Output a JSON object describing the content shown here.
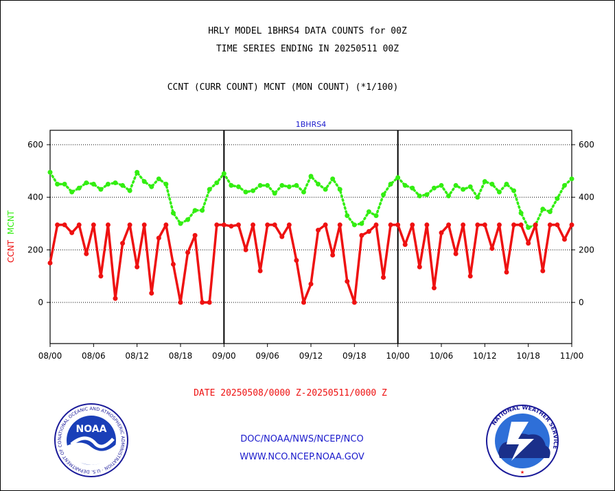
{
  "header": {
    "title_line1": "HRLY MODEL 1BHRS4 DATA COUNTS for 00Z",
    "title_line2": "TIME SERIES ENDING IN 20250511 00Z",
    "subtitle": "CCNT (CURR COUNT) MCNT (MON COUNT) (*1/100)"
  },
  "footer": {
    "date_range": "DATE 20250508/0000 Z-20250511/0000 Z",
    "org_path": "DOC/NOAA/NWS/NCEP/NCO",
    "website": "WWW.NCO.NCEP.NOAA.GOV",
    "noaa_logo_text": "NOAA",
    "noaa_ring_text": "NATIONAL OCEANIC AND ATMOSPHERIC ADMINISTRATION · U.S. DEPARTMENT OF COMMERCE ·",
    "nws_ring_text": "NATIONAL WEATHER SERVICE"
  },
  "colors": {
    "ccnt": "#ee1111",
    "mcnt": "#33ee11",
    "axis_title": "#1a1acc",
    "ylabel_ccnt": "#ee1111",
    "ylabel_mcnt": "#33ee11"
  },
  "chart_data": {
    "type": "line",
    "title": "1BHRS4",
    "ylabel_parts": [
      "CCNT",
      "MCNT"
    ],
    "ylim": [
      -160,
      650
    ],
    "yticks": [
      0,
      200,
      400,
      600
    ],
    "xlim": [
      0,
      72
    ],
    "xticks": [
      {
        "x": 0,
        "label": "08/00"
      },
      {
        "x": 6,
        "label": "08/06"
      },
      {
        "x": 12,
        "label": "08/12"
      },
      {
        "x": 18,
        "label": "08/18"
      },
      {
        "x": 24,
        "label": "09/00"
      },
      {
        "x": 30,
        "label": "09/06"
      },
      {
        "x": 36,
        "label": "09/12"
      },
      {
        "x": 42,
        "label": "09/18"
      },
      {
        "x": 48,
        "label": "10/00"
      },
      {
        "x": 54,
        "label": "10/06"
      },
      {
        "x": 60,
        "label": "10/12"
      },
      {
        "x": 66,
        "label": "10/18"
      },
      {
        "x": 72,
        "label": "11/00"
      }
    ],
    "day_dividers": [
      24,
      48
    ],
    "grid_y": true,
    "series": [
      {
        "name": "CCNT",
        "style": "solid",
        "points": [
          [
            0,
            150
          ],
          [
            1,
            295
          ],
          [
            2,
            295
          ],
          [
            3,
            265
          ],
          [
            4,
            295
          ],
          [
            5,
            185
          ],
          [
            6,
            295
          ],
          [
            7,
            100
          ],
          [
            8,
            295
          ],
          [
            9,
            15
          ],
          [
            10,
            225
          ],
          [
            11,
            295
          ],
          [
            12,
            135
          ],
          [
            13,
            295
          ],
          [
            14,
            35
          ],
          [
            15,
            245
          ],
          [
            16,
            295
          ],
          [
            17,
            145
          ],
          [
            18,
            0
          ],
          [
            19,
            190
          ],
          [
            20,
            255
          ],
          [
            21,
            0
          ],
          [
            22,
            0
          ],
          [
            23,
            295
          ],
          [
            24,
            295
          ],
          [
            25,
            290
          ],
          [
            26,
            295
          ],
          [
            27,
            200
          ],
          [
            28,
            295
          ],
          [
            29,
            120
          ],
          [
            30,
            295
          ],
          [
            31,
            295
          ],
          [
            32,
            250
          ],
          [
            33,
            295
          ],
          [
            34,
            160
          ],
          [
            35,
            0
          ],
          [
            36,
            70
          ],
          [
            37,
            275
          ],
          [
            38,
            295
          ],
          [
            39,
            180
          ],
          [
            40,
            295
          ],
          [
            41,
            80
          ],
          [
            42,
            0
          ],
          [
            43,
            255
          ],
          [
            44,
            270
          ],
          [
            45,
            295
          ],
          [
            46,
            95
          ],
          [
            47,
            295
          ],
          [
            48,
            295
          ],
          [
            49,
            220
          ],
          [
            50,
            295
          ],
          [
            51,
            135
          ],
          [
            52,
            295
          ],
          [
            53,
            55
          ],
          [
            54,
            265
          ],
          [
            55,
            295
          ],
          [
            56,
            185
          ],
          [
            57,
            295
          ],
          [
            58,
            100
          ],
          [
            59,
            295
          ],
          [
            60,
            295
          ],
          [
            61,
            205
          ],
          [
            62,
            295
          ],
          [
            63,
            115
          ],
          [
            64,
            295
          ],
          [
            65,
            295
          ],
          [
            66,
            225
          ],
          [
            67,
            295
          ],
          [
            68,
            120
          ],
          [
            69,
            295
          ],
          [
            70,
            295
          ],
          [
            71,
            240
          ],
          [
            72,
            295
          ]
        ]
      },
      {
        "name": "MCNT",
        "style": "dotted",
        "points": [
          [
            0,
            495
          ],
          [
            1,
            450
          ],
          [
            2,
            450
          ],
          [
            3,
            420
          ],
          [
            4,
            435
          ],
          [
            5,
            455
          ],
          [
            6,
            450
          ],
          [
            7,
            430
          ],
          [
            8,
            450
          ],
          [
            9,
            455
          ],
          [
            10,
            445
          ],
          [
            11,
            425
          ],
          [
            12,
            495
          ],
          [
            13,
            460
          ],
          [
            14,
            440
          ],
          [
            15,
            470
          ],
          [
            16,
            450
          ],
          [
            17,
            340
          ],
          [
            18,
            300
          ],
          [
            19,
            315
          ],
          [
            20,
            350
          ],
          [
            21,
            350
          ],
          [
            22,
            430
          ],
          [
            23,
            455
          ],
          [
            24,
            490
          ],
          [
            25,
            445
          ],
          [
            26,
            440
          ],
          [
            27,
            420
          ],
          [
            28,
            425
          ],
          [
            29,
            445
          ],
          [
            30,
            445
          ],
          [
            31,
            415
          ],
          [
            32,
            445
          ],
          [
            33,
            440
          ],
          [
            34,
            445
          ],
          [
            35,
            420
          ],
          [
            36,
            480
          ],
          [
            37,
            450
          ],
          [
            38,
            430
          ],
          [
            39,
            470
          ],
          [
            40,
            430
          ],
          [
            41,
            330
          ],
          [
            42,
            295
          ],
          [
            43,
            300
          ],
          [
            44,
            345
          ],
          [
            45,
            330
          ],
          [
            46,
            410
          ],
          [
            47,
            450
          ],
          [
            48,
            475
          ],
          [
            49,
            445
          ],
          [
            50,
            435
          ],
          [
            51,
            405
          ],
          [
            52,
            410
          ],
          [
            53,
            435
          ],
          [
            54,
            445
          ],
          [
            55,
            405
          ],
          [
            56,
            445
          ],
          [
            57,
            430
          ],
          [
            58,
            440
          ],
          [
            59,
            400
          ],
          [
            60,
            460
          ],
          [
            61,
            450
          ],
          [
            62,
            420
          ],
          [
            63,
            450
          ],
          [
            64,
            425
          ],
          [
            65,
            340
          ],
          [
            66,
            285
          ],
          [
            67,
            295
          ],
          [
            68,
            355
          ],
          [
            69,
            345
          ],
          [
            70,
            395
          ],
          [
            71,
            445
          ],
          [
            72,
            470
          ]
        ]
      }
    ]
  }
}
